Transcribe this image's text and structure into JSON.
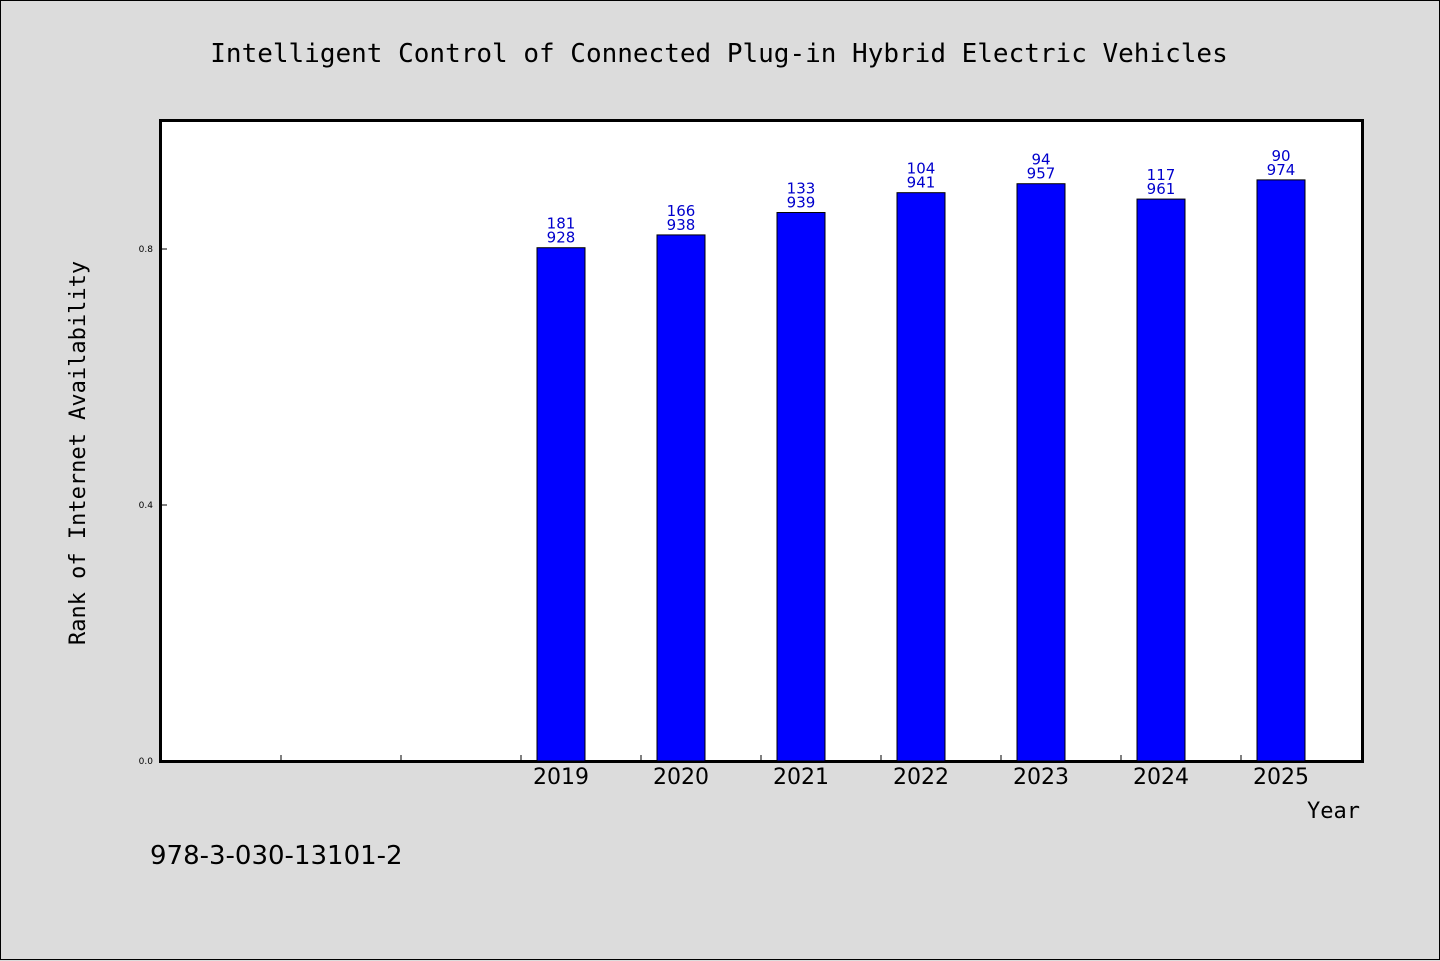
{
  "chart_data": {
    "type": "bar",
    "title": "Intelligent Control of Connected Plug-in Hybrid Electric Vehicles",
    "xlabel": "Year",
    "ylabel": "Rank of Internet Availability",
    "ylim": [
      0.0,
      1.0
    ],
    "yticks": [
      "0.0",
      "0.4",
      "0.8"
    ],
    "ytick_values": [
      0.0,
      0.4,
      0.8
    ],
    "grid": false,
    "bar_color": "#0000ff",
    "label_color": "#0000cc",
    "categories": [
      "2019",
      "2020",
      "2021",
      "2022",
      "2023",
      "2024",
      "2025"
    ],
    "values": [
      0.802,
      0.822,
      0.857,
      0.888,
      0.902,
      0.878,
      0.908
    ],
    "labels_top": [
      "181",
      "166",
      "133",
      "104",
      "94",
      "117",
      "90"
    ],
    "labels_bottom": [
      "928",
      "938",
      "939",
      "941",
      "957",
      "961",
      "974"
    ]
  },
  "footer": {
    "isbn": "978-3-030-13101-2"
  }
}
